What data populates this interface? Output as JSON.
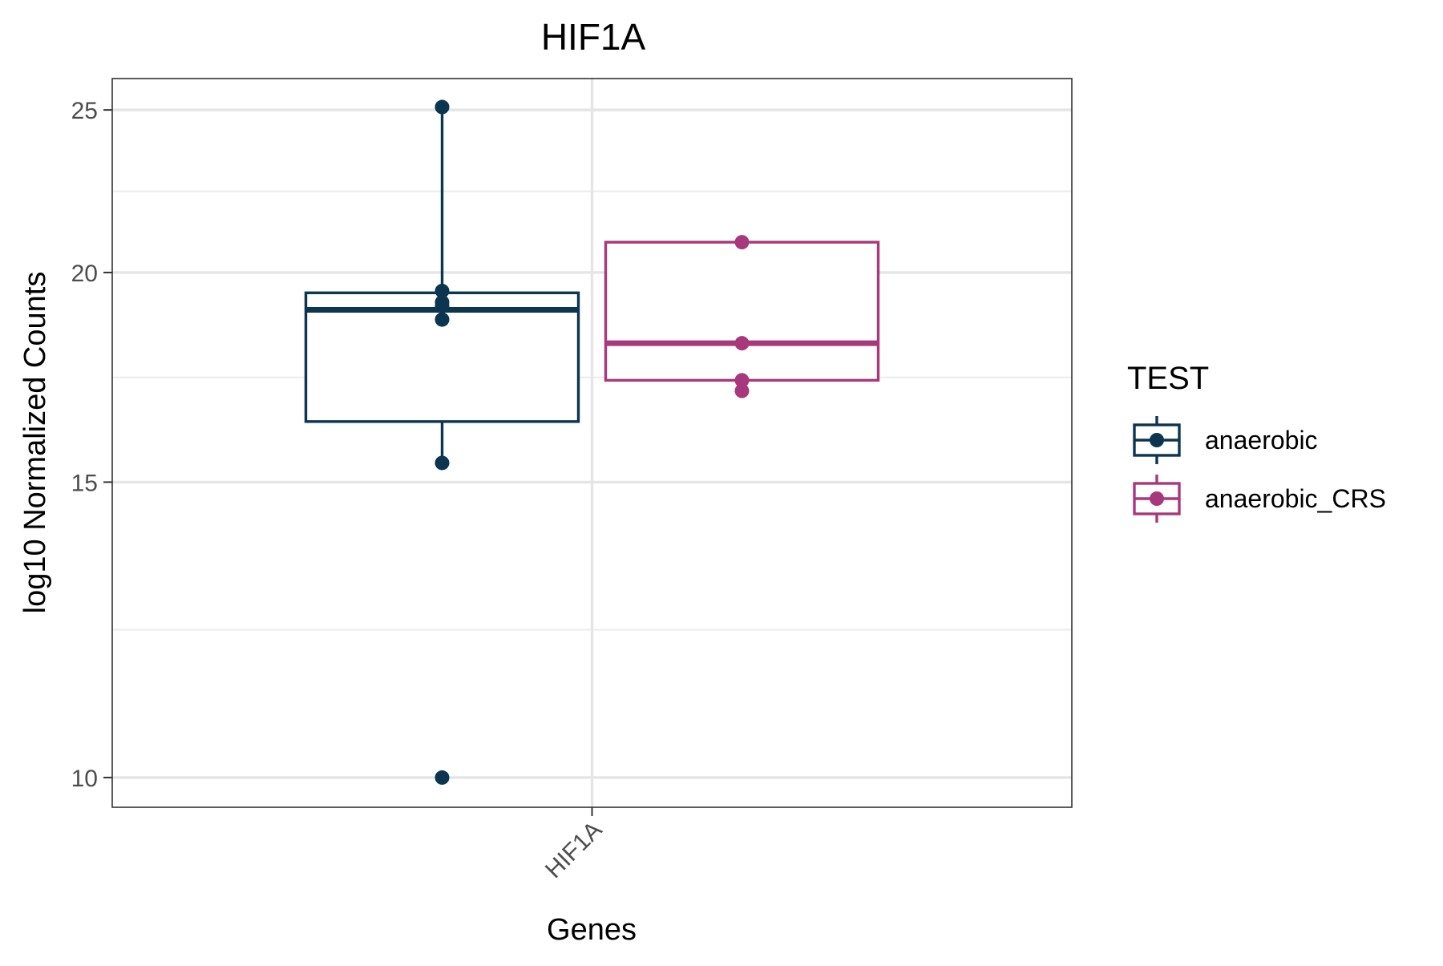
{
  "chart_data": {
    "type": "box",
    "title": "HIF1A",
    "xlabel": "Genes",
    "ylabel": "log10 Normalized Counts",
    "categories": [
      "HIF1A"
    ],
    "y_scale": "log10",
    "ylim": [
      9.6,
      26.1
    ],
    "y_ticks": [
      10,
      15,
      20,
      25
    ],
    "y_minor_ticks": [
      12.25,
      17.32,
      22.36
    ],
    "grid": true,
    "x_tick_rotation": -45,
    "legend": {
      "title": "TEST",
      "position": "right",
      "entries": [
        "anaerobic",
        "anaerobic_CRS"
      ]
    },
    "series": [
      {
        "name": "anaerobic",
        "color": "#0c3550",
        "box": {
          "whisker_low": 15.4,
          "q1": 16.3,
          "median": 19.0,
          "q3": 19.45,
          "whisker_high": 25.1
        },
        "points": [
          25.1,
          19.5,
          19.2,
          19.1,
          18.75,
          15.4,
          10.0
        ]
      },
      {
        "name": "anaerobic_CRS",
        "color": "#a8387c",
        "box": {
          "whisker_low": 17.25,
          "q1": 17.25,
          "median": 18.15,
          "q3": 20.85,
          "whisker_high": 20.85
        },
        "points": [
          20.85,
          18.15,
          17.25,
          17.0
        ]
      }
    ]
  }
}
